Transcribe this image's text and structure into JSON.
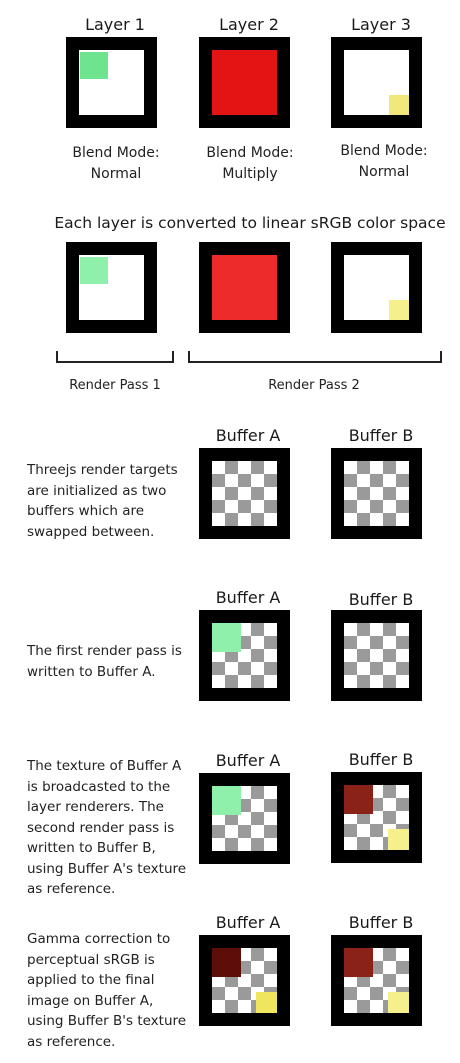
{
  "layers": [
    {
      "title": "Layer 1",
      "blend_line1": "Blend Mode:",
      "blend_line2": "Normal"
    },
    {
      "title": "Layer 2",
      "blend_line1": "Blend Mode:",
      "blend_line2": "Multiply"
    },
    {
      "title": "Layer 3",
      "blend_line1": "Blend Mode:",
      "blend_line2": "Normal"
    }
  ],
  "linear_heading": "Each layer is converted to linear sRGB color space",
  "render_passes": [
    "Render Pass 1",
    "Render Pass 2"
  ],
  "steps": [
    {
      "desc": [
        "Threejs render targets",
        "are initialized as two",
        "buffers which are",
        "swapped between."
      ],
      "buffer_a": "Buffer A",
      "buffer_b": "Buffer B"
    },
    {
      "desc": [
        "The first render pass is",
        "written to Buffer A."
      ],
      "buffer_a": "Buffer A",
      "buffer_b": "Buffer B"
    },
    {
      "desc": [
        "The texture of Buffer A",
        "is broadcasted to the",
        "layer renderers. The",
        "second render pass is",
        "written to Buffer B,",
        "using Buffer A's texture",
        "as reference."
      ],
      "buffer_a": "Buffer A",
      "buffer_b": "Buffer B"
    },
    {
      "desc": [
        "Gamma correction to",
        "perceptual sRGB is",
        "applied to the final",
        "image on Buffer A,",
        "using Buffer B's texture",
        "as reference."
      ],
      "buffer_a": "Buffer A",
      "buffer_b": "Buffer B"
    }
  ],
  "colors": {
    "green": "#6ee48f",
    "green_linear": "#8ef0aa",
    "red": "#e31414",
    "red_linear": "#ed2b2b",
    "yellow": "#f0e87a",
    "yellow_linear": "#f5ef8c",
    "dark_red_b": "#8b2218",
    "dark_red_a": "#5e0e08",
    "yellow_a": "#efe55e"
  }
}
